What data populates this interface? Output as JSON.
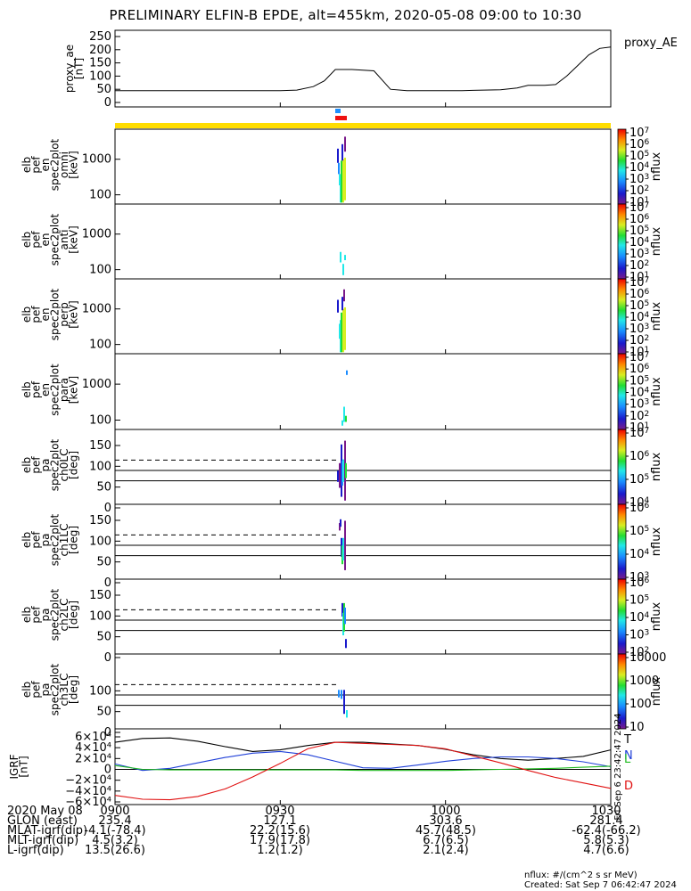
{
  "title": "PRELIMINARY ELFIN-B EPDE, alt=455km, 2020-05-08 09:00 to 10:30",
  "colors": {
    "yellow_bar": "#ffdd00",
    "blue_marker": "#1e90ff",
    "red_marker": "#ee1111",
    "geo_T": "#000000",
    "geo_N": "#1f3fd8",
    "geo_L": "#22bb22",
    "geo_D": "#e01010"
  },
  "chart_data": [
    {
      "type": "line",
      "panel": "proxy_ae",
      "ylabel": [
        "proxy_ae",
        "[nT]"
      ],
      "yticks": [
        "250",
        "200",
        "150",
        "100",
        "50",
        "0"
      ],
      "ylim": [
        0,
        270
      ],
      "legend": "proxy_AE",
      "x_minutes": [
        0,
        10,
        20,
        30,
        33,
        36,
        38,
        40,
        43,
        47,
        50,
        53,
        55,
        58,
        60,
        63,
        65,
        70,
        73,
        75,
        78,
        80,
        82,
        84,
        86,
        88,
        90
      ],
      "values": [
        45,
        45,
        45,
        45,
        47,
        60,
        82,
        125,
        125,
        120,
        50,
        45,
        45,
        45,
        45,
        45,
        46,
        48,
        55,
        65,
        65,
        68,
        100,
        140,
        180,
        205,
        210
      ]
    },
    {
      "type": "heatmap",
      "panel": "elb_pef_en_spec2plot_omni",
      "ylabel": [
        "elb",
        "pef",
        "en",
        "spec2plot",
        "omni",
        "[keV]"
      ],
      "yticks": [
        "1000",
        "100"
      ],
      "ylim": [
        55,
        7000
      ],
      "yscale": "log",
      "zlabel": "nflux",
      "zticks": [
        "10^1",
        "10^2",
        "10^3",
        "10^4",
        "10^5",
        "10^6",
        "10^7"
      ]
    },
    {
      "type": "heatmap",
      "panel": "elb_pef_en_spec2plot_anti",
      "ylabel": [
        "elb",
        "pef",
        "en",
        "spec2plot",
        "anti",
        "[keV]"
      ],
      "yticks": [
        "1000",
        "100"
      ],
      "ylim": [
        55,
        7000
      ],
      "yscale": "log",
      "zlabel": "nflux",
      "zticks": [
        "10^1",
        "10^2",
        "10^3",
        "10^4",
        "10^5",
        "10^6",
        "10^7"
      ]
    },
    {
      "type": "heatmap",
      "panel": "elb_pef_en_spec2plot_perp",
      "ylabel": [
        "elb",
        "pef",
        "en",
        "spec2plot",
        "perp",
        "[keV]"
      ],
      "yticks": [
        "1000",
        "100"
      ],
      "ylim": [
        55,
        7000
      ],
      "yscale": "log",
      "zlabel": "nflux",
      "zticks": [
        "10^1",
        "10^2",
        "10^3",
        "10^4",
        "10^5",
        "10^6",
        "10^7"
      ]
    },
    {
      "type": "heatmap",
      "panel": "elb_pef_en_spec2plot_para",
      "ylabel": [
        "elb",
        "pef",
        "en",
        "spec2plot",
        "para",
        "[keV]"
      ],
      "yticks": [
        "1000",
        "100"
      ],
      "ylim": [
        55,
        7000
      ],
      "yscale": "log",
      "zlabel": "nflux",
      "zticks": [
        "10^1",
        "10^2",
        "10^3",
        "10^4",
        "10^5",
        "10^6",
        "10^7"
      ]
    },
    {
      "type": "heatmap",
      "panel": "elb_pef_pa_spec2plot_ch0LC",
      "ylabel": [
        "elb",
        "pef",
        "pa",
        "spec2plot",
        "ch0LC",
        "[deg]"
      ],
      "yticks": [
        "150",
        "100",
        "50",
        "0"
      ],
      "ylim": [
        0,
        180
      ],
      "zlabel": "nflux",
      "zticks": [
        "10^4",
        "10^5",
        "10^6",
        "10^7"
      ]
    },
    {
      "type": "heatmap",
      "panel": "elb_pef_pa_spec2plot_ch1LC",
      "ylabel": [
        "elb",
        "pef",
        "pa",
        "spec2plot",
        "ch1LC",
        "[deg]"
      ],
      "yticks": [
        "150",
        "100",
        "50",
        "0"
      ],
      "ylim": [
        0,
        180
      ],
      "zlabel": "nflux",
      "zticks": [
        "10^3",
        "10^4",
        "10^5",
        "10^6"
      ]
    },
    {
      "type": "heatmap",
      "panel": "elb_pef_pa_spec2plot_ch2LC",
      "ylabel": [
        "elb",
        "pef",
        "pa",
        "spec2plot",
        "ch2LC",
        "[deg]"
      ],
      "yticks": [
        "150",
        "100",
        "50",
        "0"
      ],
      "ylim": [
        0,
        180
      ],
      "zlabel": "nflux",
      "zticks": [
        "10^2",
        "10^3",
        "10^4",
        "10^5",
        "10^6"
      ]
    },
    {
      "type": "heatmap",
      "panel": "elb_pef_pa_spec2plot_ch3LC",
      "ylabel": [
        "elb",
        "pef",
        "pa",
        "spec2plot",
        "ch3LC",
        "[deg]"
      ],
      "yticks": [
        "100",
        "50",
        "0"
      ],
      "ylim": [
        0,
        180
      ],
      "zlabel": "nflux",
      "zticks": [
        "10",
        "100",
        "1000",
        "10000"
      ]
    },
    {
      "type": "line",
      "panel": "IGRF",
      "ylabel": [
        "IGRF",
        "[nT]"
      ],
      "yticks": [
        "6×10⁴",
        "4×10⁴",
        "2×10⁴",
        "0",
        "−2×10⁴",
        "−4×10⁴",
        "−6×10⁴"
      ],
      "ylim": [
        -65000,
        65000
      ],
      "x_minutes": [
        0,
        5,
        10,
        15,
        20,
        25,
        30,
        35,
        40,
        45,
        50,
        55,
        60,
        65,
        70,
        75,
        80,
        85,
        90
      ],
      "series": [
        {
          "name": "T",
          "values": [
            50000,
            57000,
            58000,
            52000,
            42000,
            33000,
            36000,
            44000,
            50000,
            50000,
            47000,
            44000,
            37000,
            27000,
            20000,
            17000,
            20000,
            24000,
            36000
          ]
        },
        {
          "name": "N",
          "values": [
            10000,
            -2000,
            2000,
            12000,
            22000,
            30000,
            33000,
            27000,
            15000,
            3000,
            2000,
            8000,
            15000,
            20000,
            23000,
            23000,
            20000,
            14000,
            5000
          ]
        },
        {
          "name": "L",
          "values": [
            7000,
            0,
            -1000,
            -1000,
            -1000,
            -1000,
            -1000,
            -1000,
            -1000,
            -2000,
            -2000,
            -2000,
            -2000,
            -1000,
            0,
            1000,
            2000,
            4000,
            6000
          ]
        },
        {
          "name": "D",
          "values": [
            -48000,
            -55000,
            -56000,
            -50000,
            -36000,
            -14000,
            11000,
            38000,
            50000,
            48000,
            46000,
            44000,
            38000,
            25000,
            12000,
            -2000,
            -15000,
            -25000,
            -35000
          ]
        }
      ]
    }
  ],
  "xaxis": {
    "ticks": [
      "0900",
      "0930",
      "1000",
      "1030"
    ],
    "tick_minutes": [
      0,
      30,
      60,
      90
    ]
  },
  "footer": {
    "rows": [
      {
        "label": "2020 May 08",
        "values": [
          "0900",
          "0930",
          "1000",
          "1030"
        ]
      },
      {
        "label": "GLON (east)",
        "values": [
          "235.4",
          "127.1",
          "303.6",
          "281.4"
        ]
      },
      {
        "label": "MLAT-igrf(dip)",
        "values": [
          "-4.1(-78.4)",
          "22.2(15.6)",
          "45.7(48.5)",
          "-62.4(-66.2)"
        ]
      },
      {
        "label": "MLT-igrf(dip)",
        "values": [
          "4.5(3.2)",
          "17.9(17.8)",
          "6.7(6.5)",
          "5.8(5.3)"
        ]
      },
      {
        "label": "L-igrf(dip)",
        "values": [
          "13.5(26.6)",
          "1.2(1.2)",
          "2.1(2.4)",
          "4.7(6.6)"
        ]
      }
    ],
    "units_note": "nflux: #/(cm^2 s sr MeV)",
    "created": "Created: Sat Sep  7 06:42:47 2024",
    "side_stamp": "Fri Sep  6 23:42:47 2024"
  }
}
